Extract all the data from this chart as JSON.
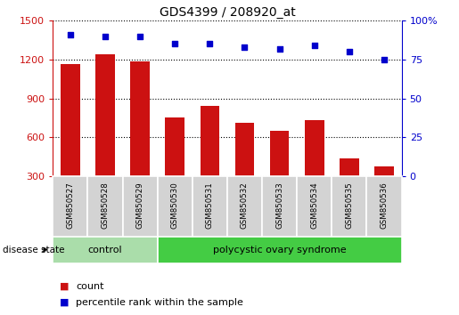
{
  "title": "GDS4399 / 208920_at",
  "samples": [
    "GSM850527",
    "GSM850528",
    "GSM850529",
    "GSM850530",
    "GSM850531",
    "GSM850532",
    "GSM850533",
    "GSM850534",
    "GSM850535",
    "GSM850536"
  ],
  "counts": [
    1165,
    1240,
    1185,
    755,
    840,
    715,
    650,
    730,
    440,
    380
  ],
  "percentiles": [
    91,
    90,
    90,
    85,
    85,
    83,
    82,
    84,
    80,
    75
  ],
  "bar_color": "#cc1111",
  "dot_color": "#0000cc",
  "left_axis_ticks": [
    300,
    600,
    900,
    1200,
    1500
  ],
  "right_axis_ticks": [
    0,
    25,
    50,
    75,
    100
  ],
  "ylim_left": [
    300,
    1500
  ],
  "ylim_right": [
    0,
    100
  ],
  "n_control": 3,
  "n_disease": 7,
  "control_label": "control",
  "disease_label": "polycystic ovary syndrome",
  "disease_state_label": "disease state",
  "legend_count": "count",
  "legend_percentile": "percentile rank within the sample",
  "control_bg": "#aaddaa",
  "disease_bg": "#44cc44",
  "sample_bg": "#d3d3d3",
  "title_fontsize": 10,
  "tick_fontsize": 8,
  "legend_fontsize": 8
}
